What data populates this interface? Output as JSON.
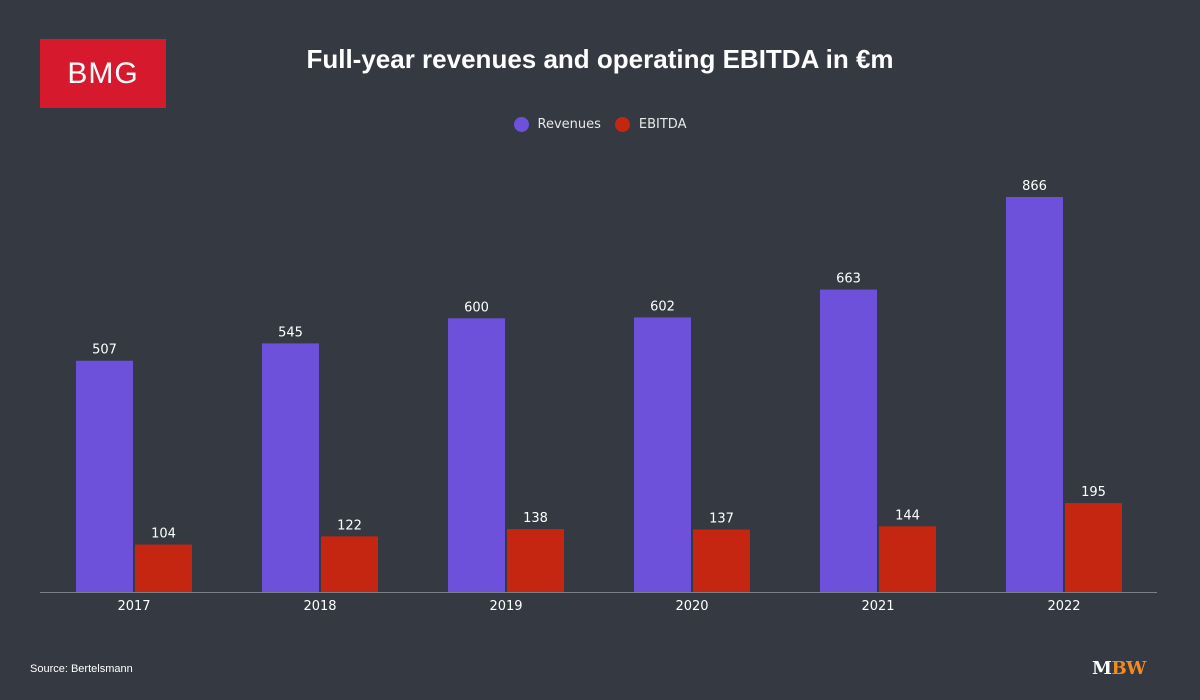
{
  "logo": {
    "text": "BMG",
    "color": "#d7192d"
  },
  "chart_data": {
    "type": "bar",
    "title": "Full-year revenues and operating EBITDA in €m",
    "categories": [
      "2017",
      "2018",
      "2019",
      "2020",
      "2021",
      "2022"
    ],
    "series": [
      {
        "name": "Revenues",
        "color": "#6e51db",
        "values": [
          507,
          545,
          600,
          602,
          663,
          866
        ]
      },
      {
        "name": "EBITDA",
        "color": "#c52612",
        "values": [
          104,
          122,
          138,
          137,
          144,
          195
        ]
      }
    ],
    "xlabel": "",
    "ylabel": "",
    "ylim": [
      0,
      866
    ],
    "grid": false,
    "legend_position": "top-center",
    "data_labels": true
  },
  "footer": {
    "source": "Source: Bertelsmann",
    "brand_m": "M",
    "brand_bw": "BW"
  }
}
